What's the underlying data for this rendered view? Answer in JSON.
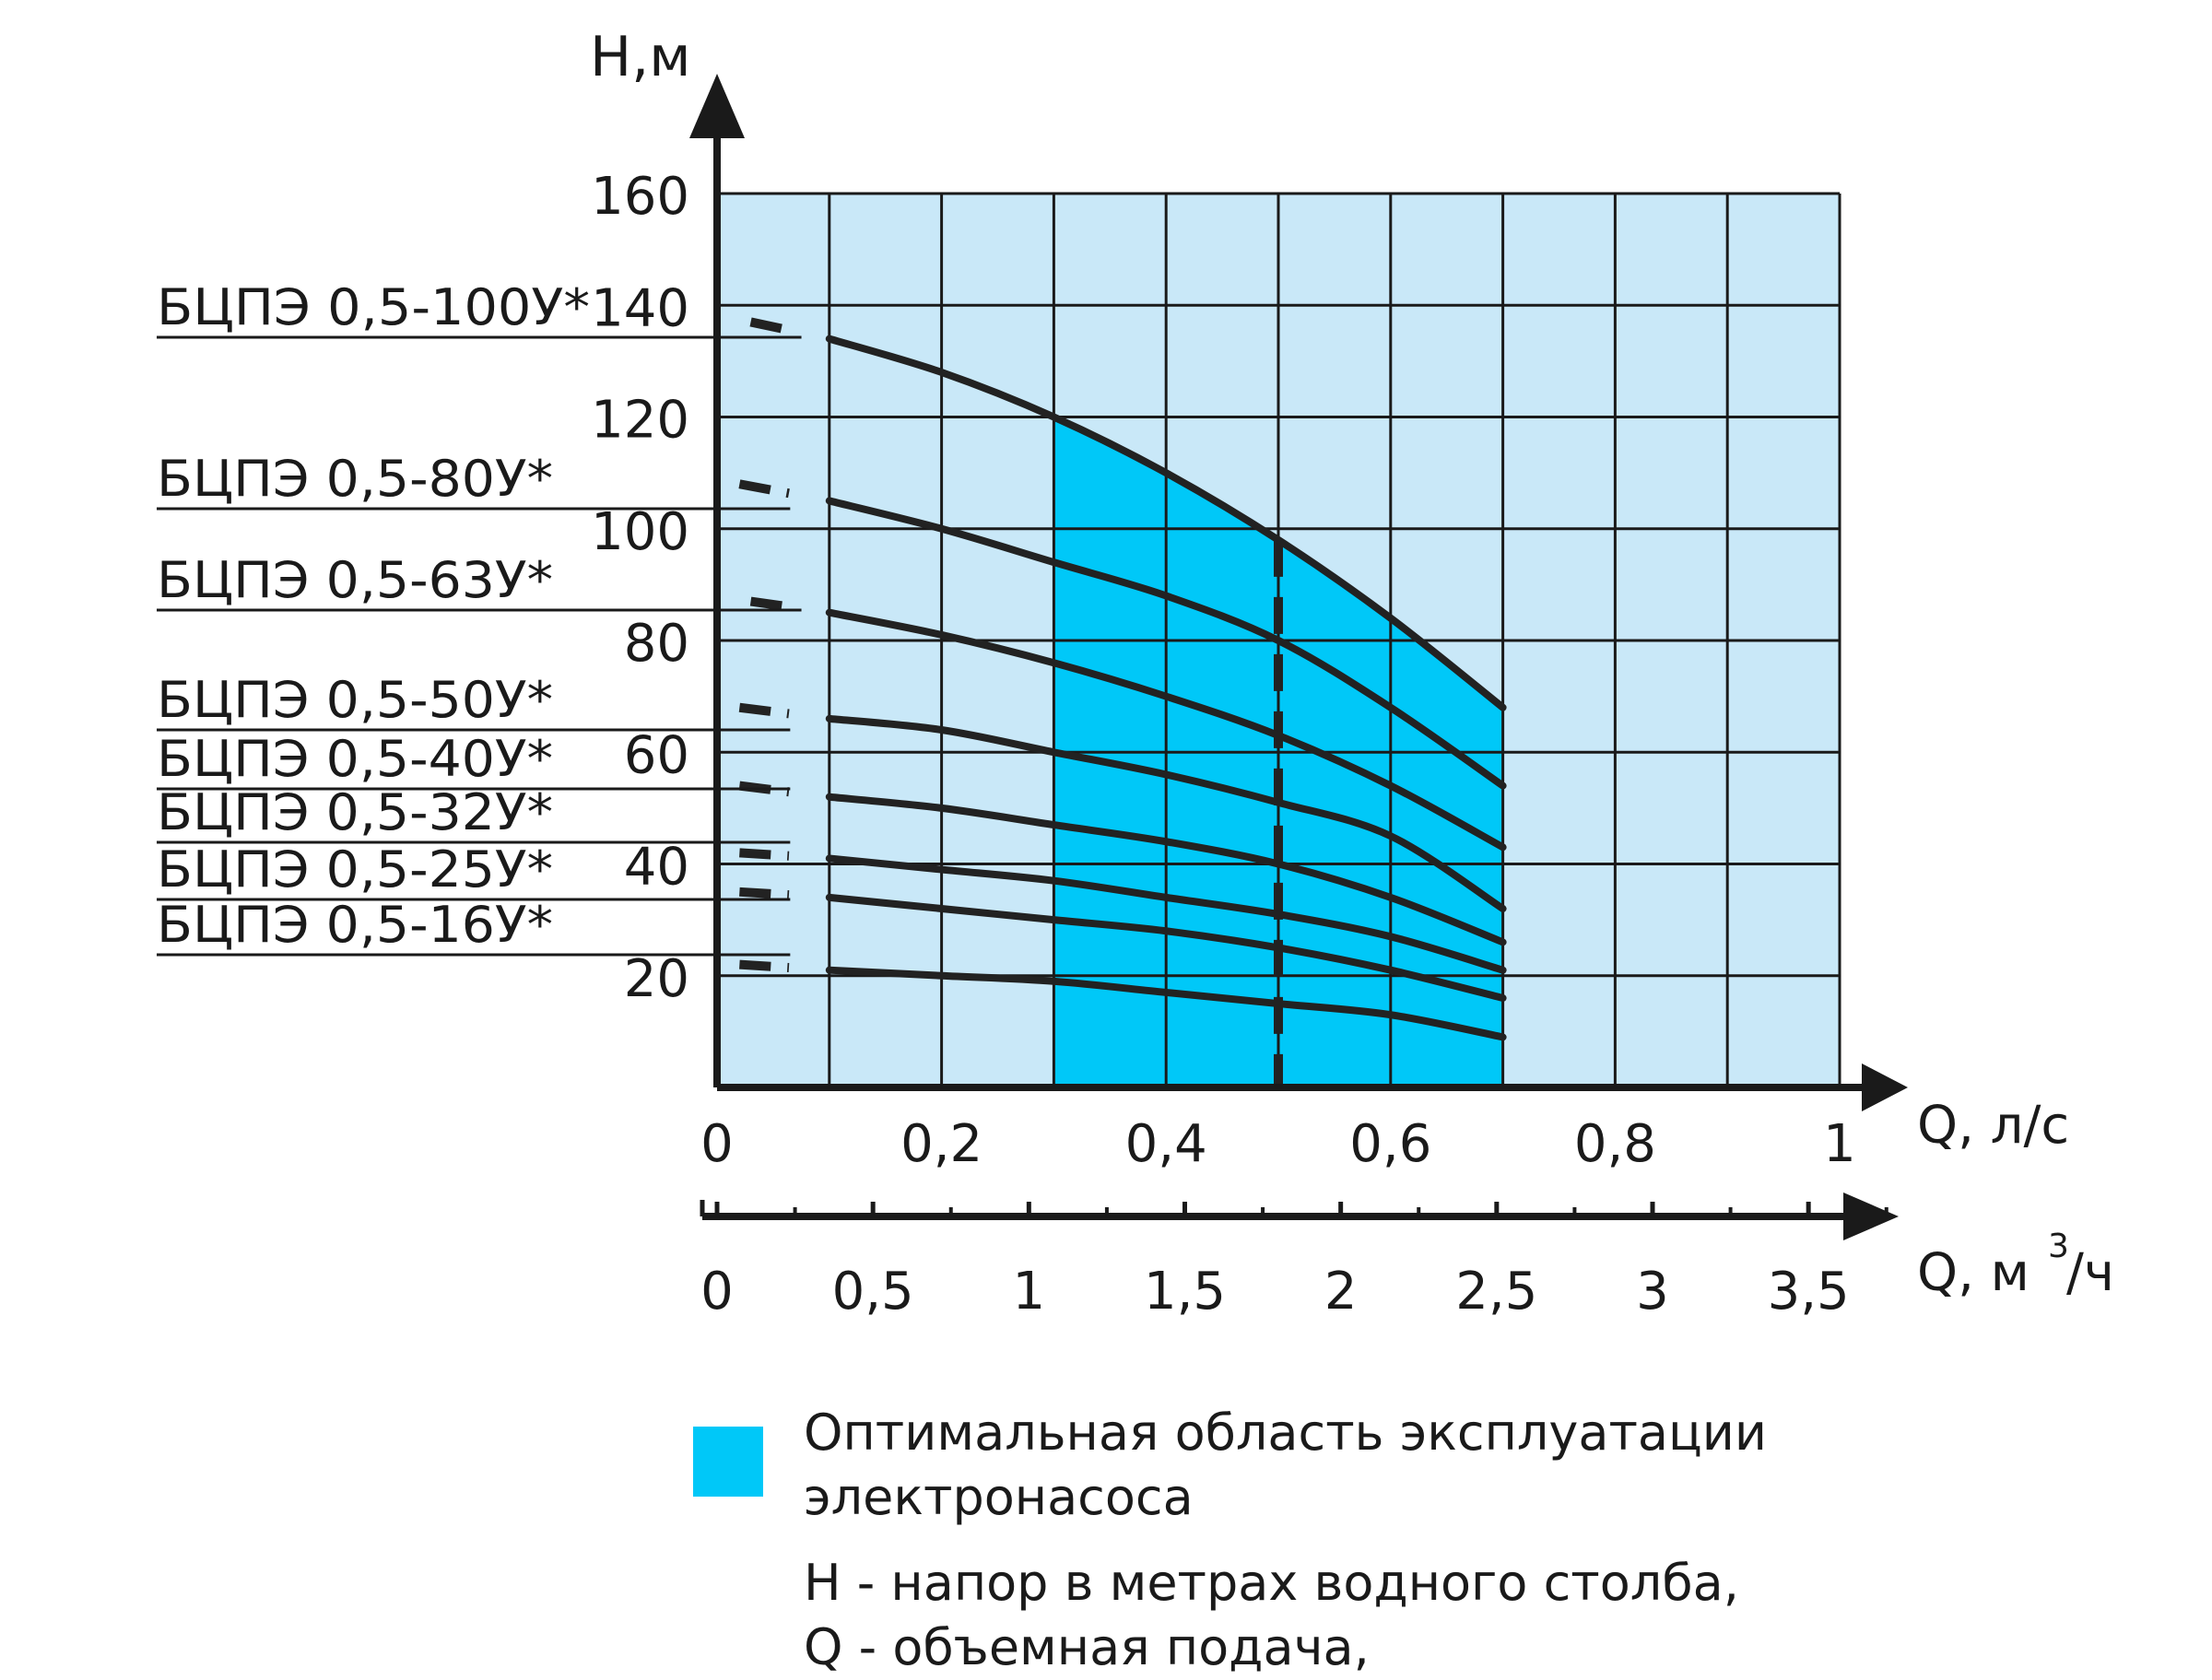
{
  "chart_data": {
    "type": "line",
    "ylabel": "H,м",
    "xlabel": "Q, л/с",
    "x2label_base": "Q, м",
    "x2label_sup": "3",
    "x2label_tail": "/ч",
    "ylim": [
      0,
      160
    ],
    "xlim": [
      0,
      1.0
    ],
    "y_ticks": [
      "160",
      "140",
      "120",
      "100",
      "80",
      "60",
      "40",
      "20"
    ],
    "y_tick_values": [
      160,
      140,
      120,
      100,
      80,
      60,
      40,
      20
    ],
    "x_ticks": [
      "0",
      "0,2",
      "0,4",
      "0,6",
      "0,8",
      "1"
    ],
    "x_tick_values": [
      0,
      0.2,
      0.4,
      0.6,
      0.8,
      1.0
    ],
    "x2_ticks": [
      "0",
      "0,5",
      "1",
      "1,5",
      "2",
      "2,5",
      "3",
      "3,5"
    ],
    "x2_tick_values": [
      0,
      0.5,
      1,
      1.5,
      2,
      2.5,
      3,
      3.5
    ],
    "x2_per_x": 3.6,
    "grid": true,
    "optimal_region": {
      "x_from": 0.3,
      "x_to": 0.7
    },
    "nominal_flow": 0.5,
    "series": [
      {
        "name": "БЦПЭ 0,5-100У*",
        "x": [
          0.03,
          0.1,
          0.2,
          0.3,
          0.4,
          0.5,
          0.6,
          0.7
        ],
        "y": [
          137,
          134,
          128,
          120,
          110,
          98,
          84,
          68
        ]
      },
      {
        "name": "БЦПЭ 0,5-80У*",
        "x": [
          0.02,
          0.1,
          0.2,
          0.3,
          0.4,
          0.5,
          0.6,
          0.7
        ],
        "y": [
          108,
          105,
          100,
          94,
          88,
          80,
          68,
          54
        ]
      },
      {
        "name": "БЦПЭ 0,5-63У*",
        "x": [
          0.03,
          0.1,
          0.2,
          0.3,
          0.4,
          0.5,
          0.6,
          0.7
        ],
        "y": [
          87,
          85,
          81,
          76,
          70,
          63,
          54,
          43
        ]
      },
      {
        "name": "БЦПЭ 0,5-50У*",
        "x": [
          0.02,
          0.1,
          0.2,
          0.3,
          0.4,
          0.5,
          0.6,
          0.7
        ],
        "y": [
          68,
          66,
          64,
          60,
          56,
          51,
          45,
          32
        ]
      },
      {
        "name": "БЦПЭ 0,5-40У*",
        "x": [
          0.02,
          0.1,
          0.2,
          0.3,
          0.4,
          0.5,
          0.6,
          0.7
        ],
        "y": [
          54,
          52,
          50,
          47,
          44,
          40,
          34,
          26
        ]
      },
      {
        "name": "БЦПЭ 0,5-32У*",
        "x": [
          0.02,
          0.1,
          0.2,
          0.3,
          0.4,
          0.5,
          0.6,
          0.7
        ],
        "y": [
          42,
          41,
          39,
          37,
          34,
          31,
          27,
          21
        ]
      },
      {
        "name": "БЦПЭ 0,5-25У*",
        "x": [
          0.02,
          0.1,
          0.2,
          0.3,
          0.4,
          0.5,
          0.6,
          0.7
        ],
        "y": [
          35,
          34,
          32,
          30,
          28,
          25,
          21,
          16
        ]
      },
      {
        "name": "БЦПЭ 0,5-16У*",
        "x": [
          0.02,
          0.1,
          0.2,
          0.3,
          0.4,
          0.5,
          0.6,
          0.7
        ],
        "y": [
          22,
          21,
          20,
          19,
          17,
          15,
          13,
          9
        ]
      }
    ],
    "colors": {
      "background": "#c9e8f8",
      "optimal": "#00c8f8",
      "grid": "#1a1a1a",
      "curve": "#222222"
    }
  },
  "legend": {
    "optimal_label": "Оптимальная область эксплуатации\nэлектронасоса",
    "note": "Н - напор в метрах водного столба,\nQ - объемная подача,"
  }
}
